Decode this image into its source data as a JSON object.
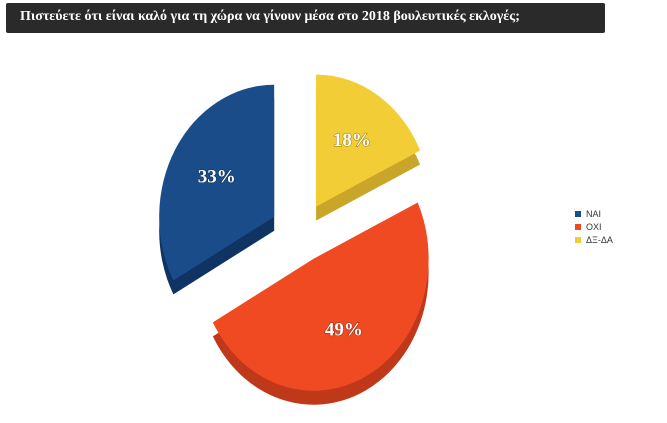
{
  "title": "Πιστεύετε ότι είναι καλό για τη χώρα να γίνουν μέσα στο 2018 βουλευτικές εκλογές;",
  "chart_data": {
    "type": "pie",
    "title": "Πιστεύετε ότι είναι καλό για τη χώρα να γίνουν μέσα στο 2018 βουλευτικές εκλογές;",
    "exploded": true,
    "three_d": true,
    "legend_position": "right",
    "slices": [
      {
        "label": "ΝΑΙ",
        "value": 33,
        "display": "33%",
        "color": "#1a4c8a",
        "side_color": "#0f3464"
      },
      {
        "label": "ΟΧΙ",
        "value": 49,
        "display": "49%",
        "color": "#f04a22",
        "side_color": "#c0381a"
      },
      {
        "label": "ΔΞ-ΔΑ",
        "value": 18,
        "display": "18%",
        "color": "#f2cd35",
        "side_color": "#c9a62a"
      }
    ]
  }
}
